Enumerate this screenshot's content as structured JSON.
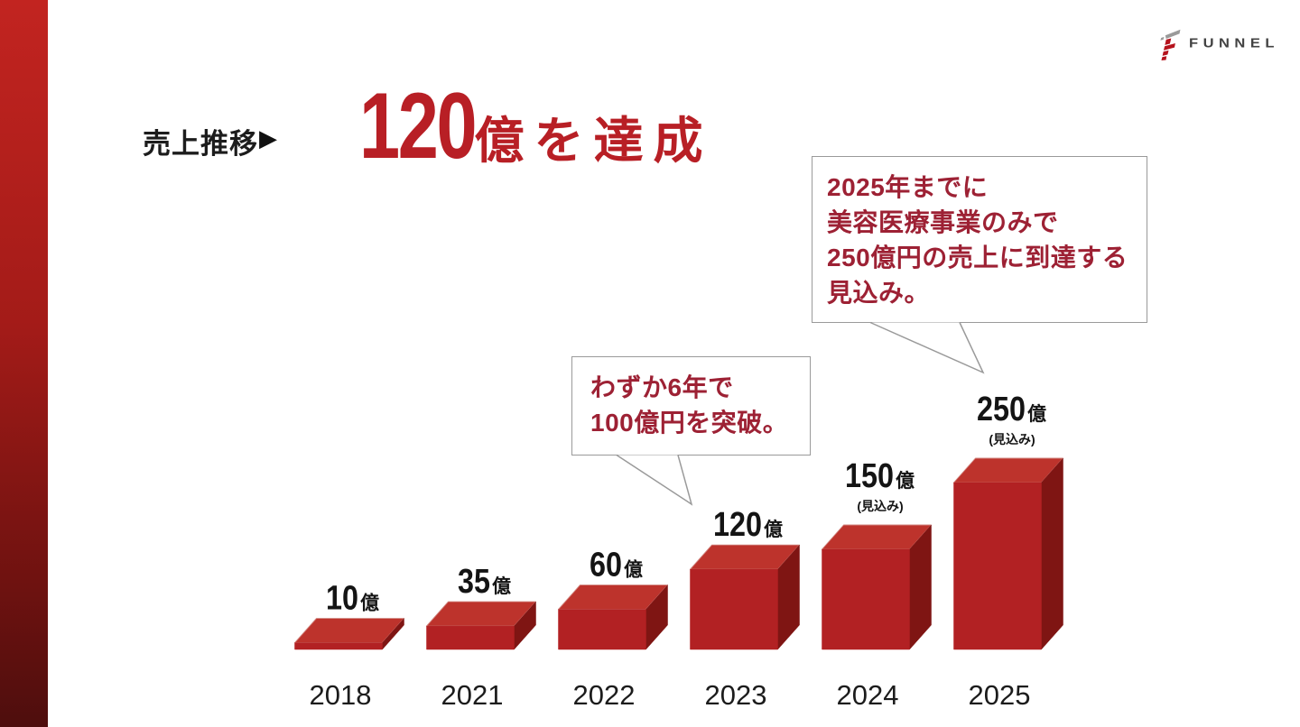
{
  "logo": {
    "brand": "FUNNEL"
  },
  "title": {
    "label": "売上推移",
    "arrow": "▶",
    "big_number": "120",
    "suffix": "億を達成"
  },
  "callouts": {
    "small": {
      "lines": [
        "わずか6年で",
        "100億円を突破。"
      ]
    },
    "large": {
      "lines": [
        "2025年までに",
        "美容医療事業のみで",
        "250億円の売上に到達する",
        "見込み。"
      ]
    }
  },
  "chart_data": {
    "type": "bar",
    "style": "3d",
    "title": "売上推移 ▶ 120億を達成",
    "categories": [
      "2018",
      "2021",
      "2022",
      "2023",
      "2024",
      "2025"
    ],
    "values": [
      10,
      35,
      60,
      120,
      150,
      250
    ],
    "unit": "億",
    "value_notes": [
      "",
      "",
      "",
      "",
      "(見込み)",
      "(見込み)"
    ],
    "xlabel": "",
    "ylabel": "",
    "ylim": [
      0,
      250
    ],
    "grid": false,
    "legend": false,
    "annotations": [
      {
        "target_category": "2023",
        "text": "わずか6年で100億円を突破。"
      },
      {
        "target_category": "2025",
        "text": "2025年までに美容医療事業のみで250億円の売上に到達する見込み。"
      }
    ],
    "colors": {
      "bar_front": "#b22123",
      "bar_top": "#bd332c",
      "bar_side": "#7f1513",
      "bar_edge": "#d1857f",
      "value_label": "#141414",
      "category_label": "#1c1c1c"
    }
  },
  "colors": {
    "accent_top": "#c22420",
    "accent_bottom": "#4e0e0d",
    "title_red": "#b81f25",
    "callout_text": "#9d2134",
    "callout_border": "#9a9a9a",
    "logo_text": "#424242",
    "logo_red": "#b5121c",
    "logo_gray": "#9a9a9a"
  }
}
